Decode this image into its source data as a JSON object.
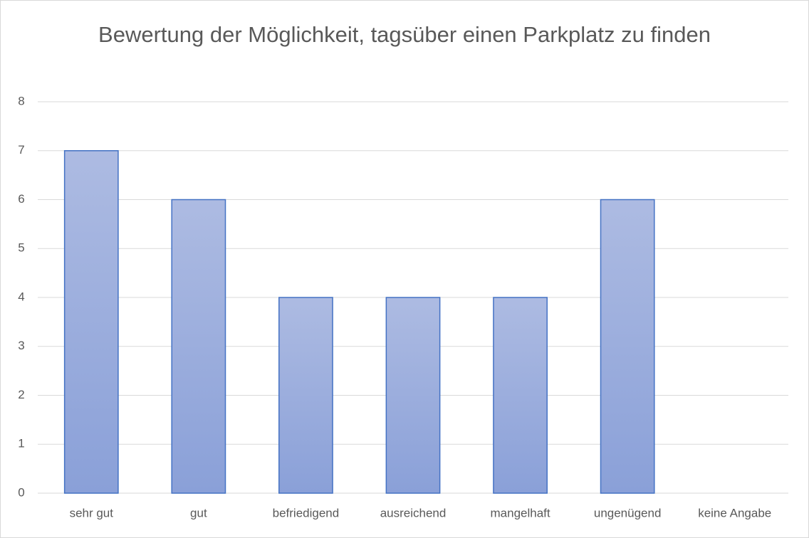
{
  "chart_data": {
    "type": "bar",
    "title": "Bewertung der Möglichkeit, tagsüber einen Parkplatz zu finden",
    "categories": [
      "sehr gut",
      "gut",
      "befriedigend",
      "ausreichend",
      "mangelhaft",
      "ungenügend",
      "keine Angabe"
    ],
    "values": [
      7,
      6,
      4,
      4,
      4,
      6,
      0
    ],
    "color": "#4472c4",
    "ylim": [
      0,
      8
    ],
    "yticks": [
      0,
      1,
      2,
      3,
      4,
      5,
      6,
      7,
      8
    ],
    "grid": true
  }
}
